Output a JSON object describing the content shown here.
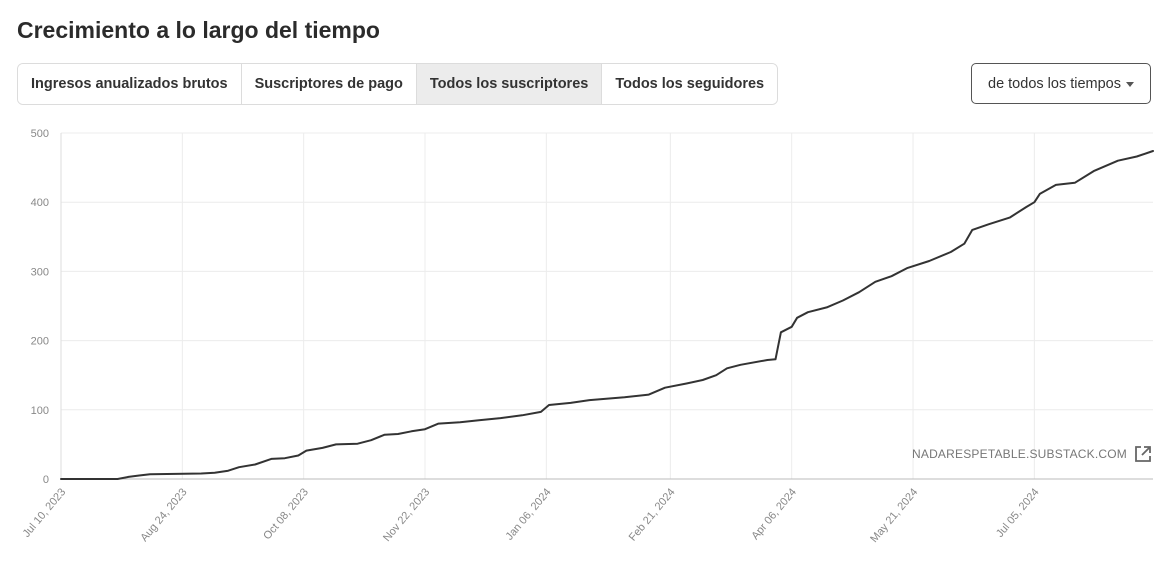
{
  "title": "Crecimiento a lo largo del tiempo",
  "tabs": [
    {
      "label": "Ingresos anualizados brutos",
      "active": false
    },
    {
      "label": "Suscriptores de pago",
      "active": false
    },
    {
      "label": "Todos los suscriptores",
      "active": true
    },
    {
      "label": "Todos los seguidores",
      "active": false
    }
  ],
  "range_select": {
    "value": "de todos los tiempos"
  },
  "watermark": {
    "text": "NADARESPETABLE.SUBSTACK.COM",
    "icon": "external-link-icon"
  },
  "colors": {
    "line": "#333333",
    "grid": "#ececec",
    "axis_text": "#888888"
  },
  "chart_data": {
    "type": "line",
    "title": "",
    "xlabel": "",
    "ylabel": "",
    "ylim": [
      0,
      500
    ],
    "yticks": [
      0,
      100,
      200,
      300,
      400,
      500
    ],
    "xticks": [
      "Jul 10, 2023",
      "Aug 24, 2023",
      "Oct 08, 2023",
      "Nov 22, 2023",
      "Jan 06, 2024",
      "Feb 21, 2024",
      "Apr 06, 2024",
      "May 21, 2024",
      "Jul 05, 2024"
    ],
    "xlim": [
      "2023-07-10",
      "2024-08-18"
    ],
    "grid": true,
    "series": [
      {
        "points": [
          [
            "2023-07-10",
            0
          ],
          [
            "2023-07-31",
            0
          ],
          [
            "2023-08-04",
            3
          ],
          [
            "2023-08-08",
            5
          ],
          [
            "2023-08-12",
            7
          ],
          [
            "2023-08-31",
            8
          ],
          [
            "2023-09-05",
            9
          ],
          [
            "2023-09-10",
            12
          ],
          [
            "2023-09-14",
            17
          ],
          [
            "2023-09-20",
            21
          ],
          [
            "2023-09-26",
            29
          ],
          [
            "2023-10-01",
            30
          ],
          [
            "2023-10-06",
            34
          ],
          [
            "2023-10-09",
            41
          ],
          [
            "2023-10-15",
            45
          ],
          [
            "2023-10-20",
            50
          ],
          [
            "2023-10-28",
            51
          ],
          [
            "2023-11-02",
            56
          ],
          [
            "2023-11-07",
            64
          ],
          [
            "2023-11-12",
            65
          ],
          [
            "2023-11-17",
            69
          ],
          [
            "2023-11-22",
            72
          ],
          [
            "2023-11-27",
            80
          ],
          [
            "2023-12-05",
            82
          ],
          [
            "2023-12-12",
            85
          ],
          [
            "2023-12-20",
            88
          ],
          [
            "2023-12-28",
            92
          ],
          [
            "2024-01-04",
            97
          ],
          [
            "2024-01-07",
            107
          ],
          [
            "2024-01-15",
            110
          ],
          [
            "2024-01-22",
            114
          ],
          [
            "2024-02-04",
            118
          ],
          [
            "2024-02-13",
            122
          ],
          [
            "2024-02-19",
            132
          ],
          [
            "2024-02-27",
            138
          ],
          [
            "2024-03-04",
            143
          ],
          [
            "2024-03-09",
            150
          ],
          [
            "2024-03-13",
            160
          ],
          [
            "2024-03-18",
            165
          ],
          [
            "2024-03-28",
            172
          ],
          [
            "2024-03-31",
            173
          ],
          [
            "2024-04-02",
            212
          ],
          [
            "2024-04-06",
            220
          ],
          [
            "2024-04-08",
            233
          ],
          [
            "2024-04-12",
            241
          ],
          [
            "2024-04-19",
            248
          ],
          [
            "2024-04-25",
            258
          ],
          [
            "2024-05-01",
            270
          ],
          [
            "2024-05-07",
            285
          ],
          [
            "2024-05-13",
            293
          ],
          [
            "2024-05-19",
            305
          ],
          [
            "2024-05-27",
            315
          ],
          [
            "2024-06-04",
            328
          ],
          [
            "2024-06-09",
            340
          ],
          [
            "2024-06-12",
            360
          ],
          [
            "2024-06-18",
            368
          ],
          [
            "2024-06-26",
            378
          ],
          [
            "2024-07-02",
            393
          ],
          [
            "2024-07-05",
            400
          ],
          [
            "2024-07-07",
            412
          ],
          [
            "2024-07-13",
            425
          ],
          [
            "2024-07-20",
            428
          ],
          [
            "2024-07-27",
            445
          ],
          [
            "2024-08-05",
            460
          ],
          [
            "2024-08-12",
            466
          ],
          [
            "2024-08-18",
            474
          ]
        ]
      }
    ]
  }
}
